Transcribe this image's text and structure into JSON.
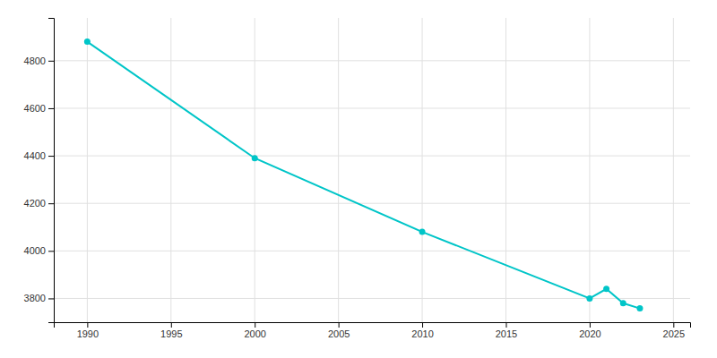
{
  "chart_data": {
    "type": "line",
    "x": [
      1990,
      2000,
      2010,
      2020,
      2021,
      2022,
      2023
    ],
    "values": [
      4880,
      4390,
      4080,
      3800,
      3840,
      3780,
      3758
    ],
    "color": "#00C5C8",
    "marker": "circle",
    "xlim": [
      1988,
      2026
    ],
    "ylim": [
      3700,
      4980
    ],
    "xticks": [
      1990,
      1995,
      2000,
      2005,
      2010,
      2015,
      2020,
      2025
    ],
    "yticks": [
      3800,
      4000,
      4200,
      4400,
      4600,
      4800
    ],
    "grid": true
  }
}
